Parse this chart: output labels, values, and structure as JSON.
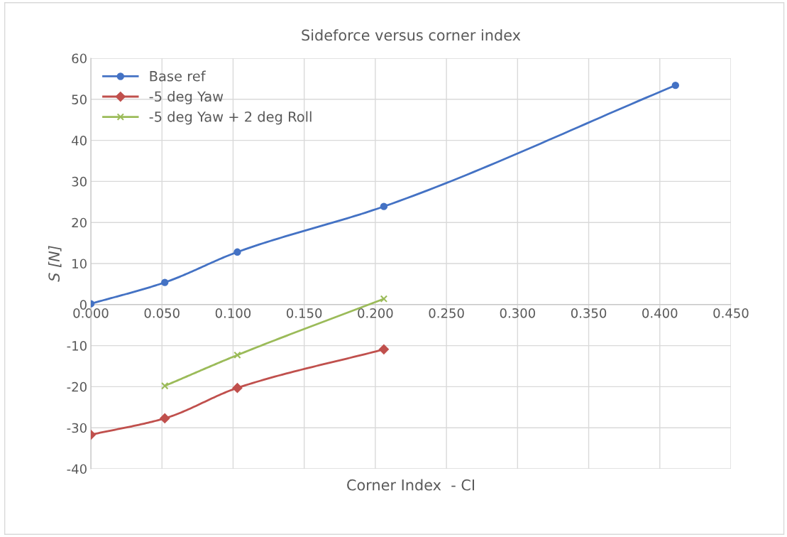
{
  "chart_data": {
    "type": "line",
    "title": "Sideforce versus corner index",
    "xlabel": "Corner Index  - CI",
    "ylabel": "S [N]",
    "xlim": [
      0,
      0.45
    ],
    "xticks": [
      {
        "value": 0,
        "label": "0.000"
      },
      {
        "value": 0.05,
        "label": "0.050"
      },
      {
        "value": 0.1,
        "label": "0.100"
      },
      {
        "value": 0.15,
        "label": "0.150"
      },
      {
        "value": 0.2,
        "label": "0.200"
      },
      {
        "value": 0.25,
        "label": "0.250"
      },
      {
        "value": 0.3,
        "label": "0.300"
      },
      {
        "value": 0.35,
        "label": "0.350"
      },
      {
        "value": 0.4,
        "label": "0.400"
      },
      {
        "value": 0.45,
        "label": "0.450"
      }
    ],
    "ylim": [
      -40,
      60
    ],
    "yticks": [
      -40,
      -30,
      -20,
      -10,
      0,
      10,
      20,
      30,
      40,
      50,
      60
    ],
    "grid": true,
    "legend": "top left",
    "series": [
      {
        "name": "Base ref",
        "color": "#4472c4",
        "marker": "circle",
        "x": [
          0.0,
          0.052,
          0.103,
          0.206,
          0.411
        ],
        "values": [
          0.2,
          5.4,
          12.8,
          23.9,
          53.4
        ]
      },
      {
        "name": "-5 deg Yaw",
        "color": "#c0504d",
        "marker": "diamond",
        "x": [
          0.0,
          0.052,
          0.103,
          0.206
        ],
        "values": [
          -31.7,
          -27.7,
          -20.3,
          -10.9
        ]
      },
      {
        "name": "-5 deg Yaw + 2 deg Roll",
        "color": "#9bbb59",
        "marker": "cross",
        "x": [
          0.052,
          0.103,
          0.206
        ],
        "values": [
          -19.8,
          -12.3,
          1.4
        ]
      }
    ]
  }
}
